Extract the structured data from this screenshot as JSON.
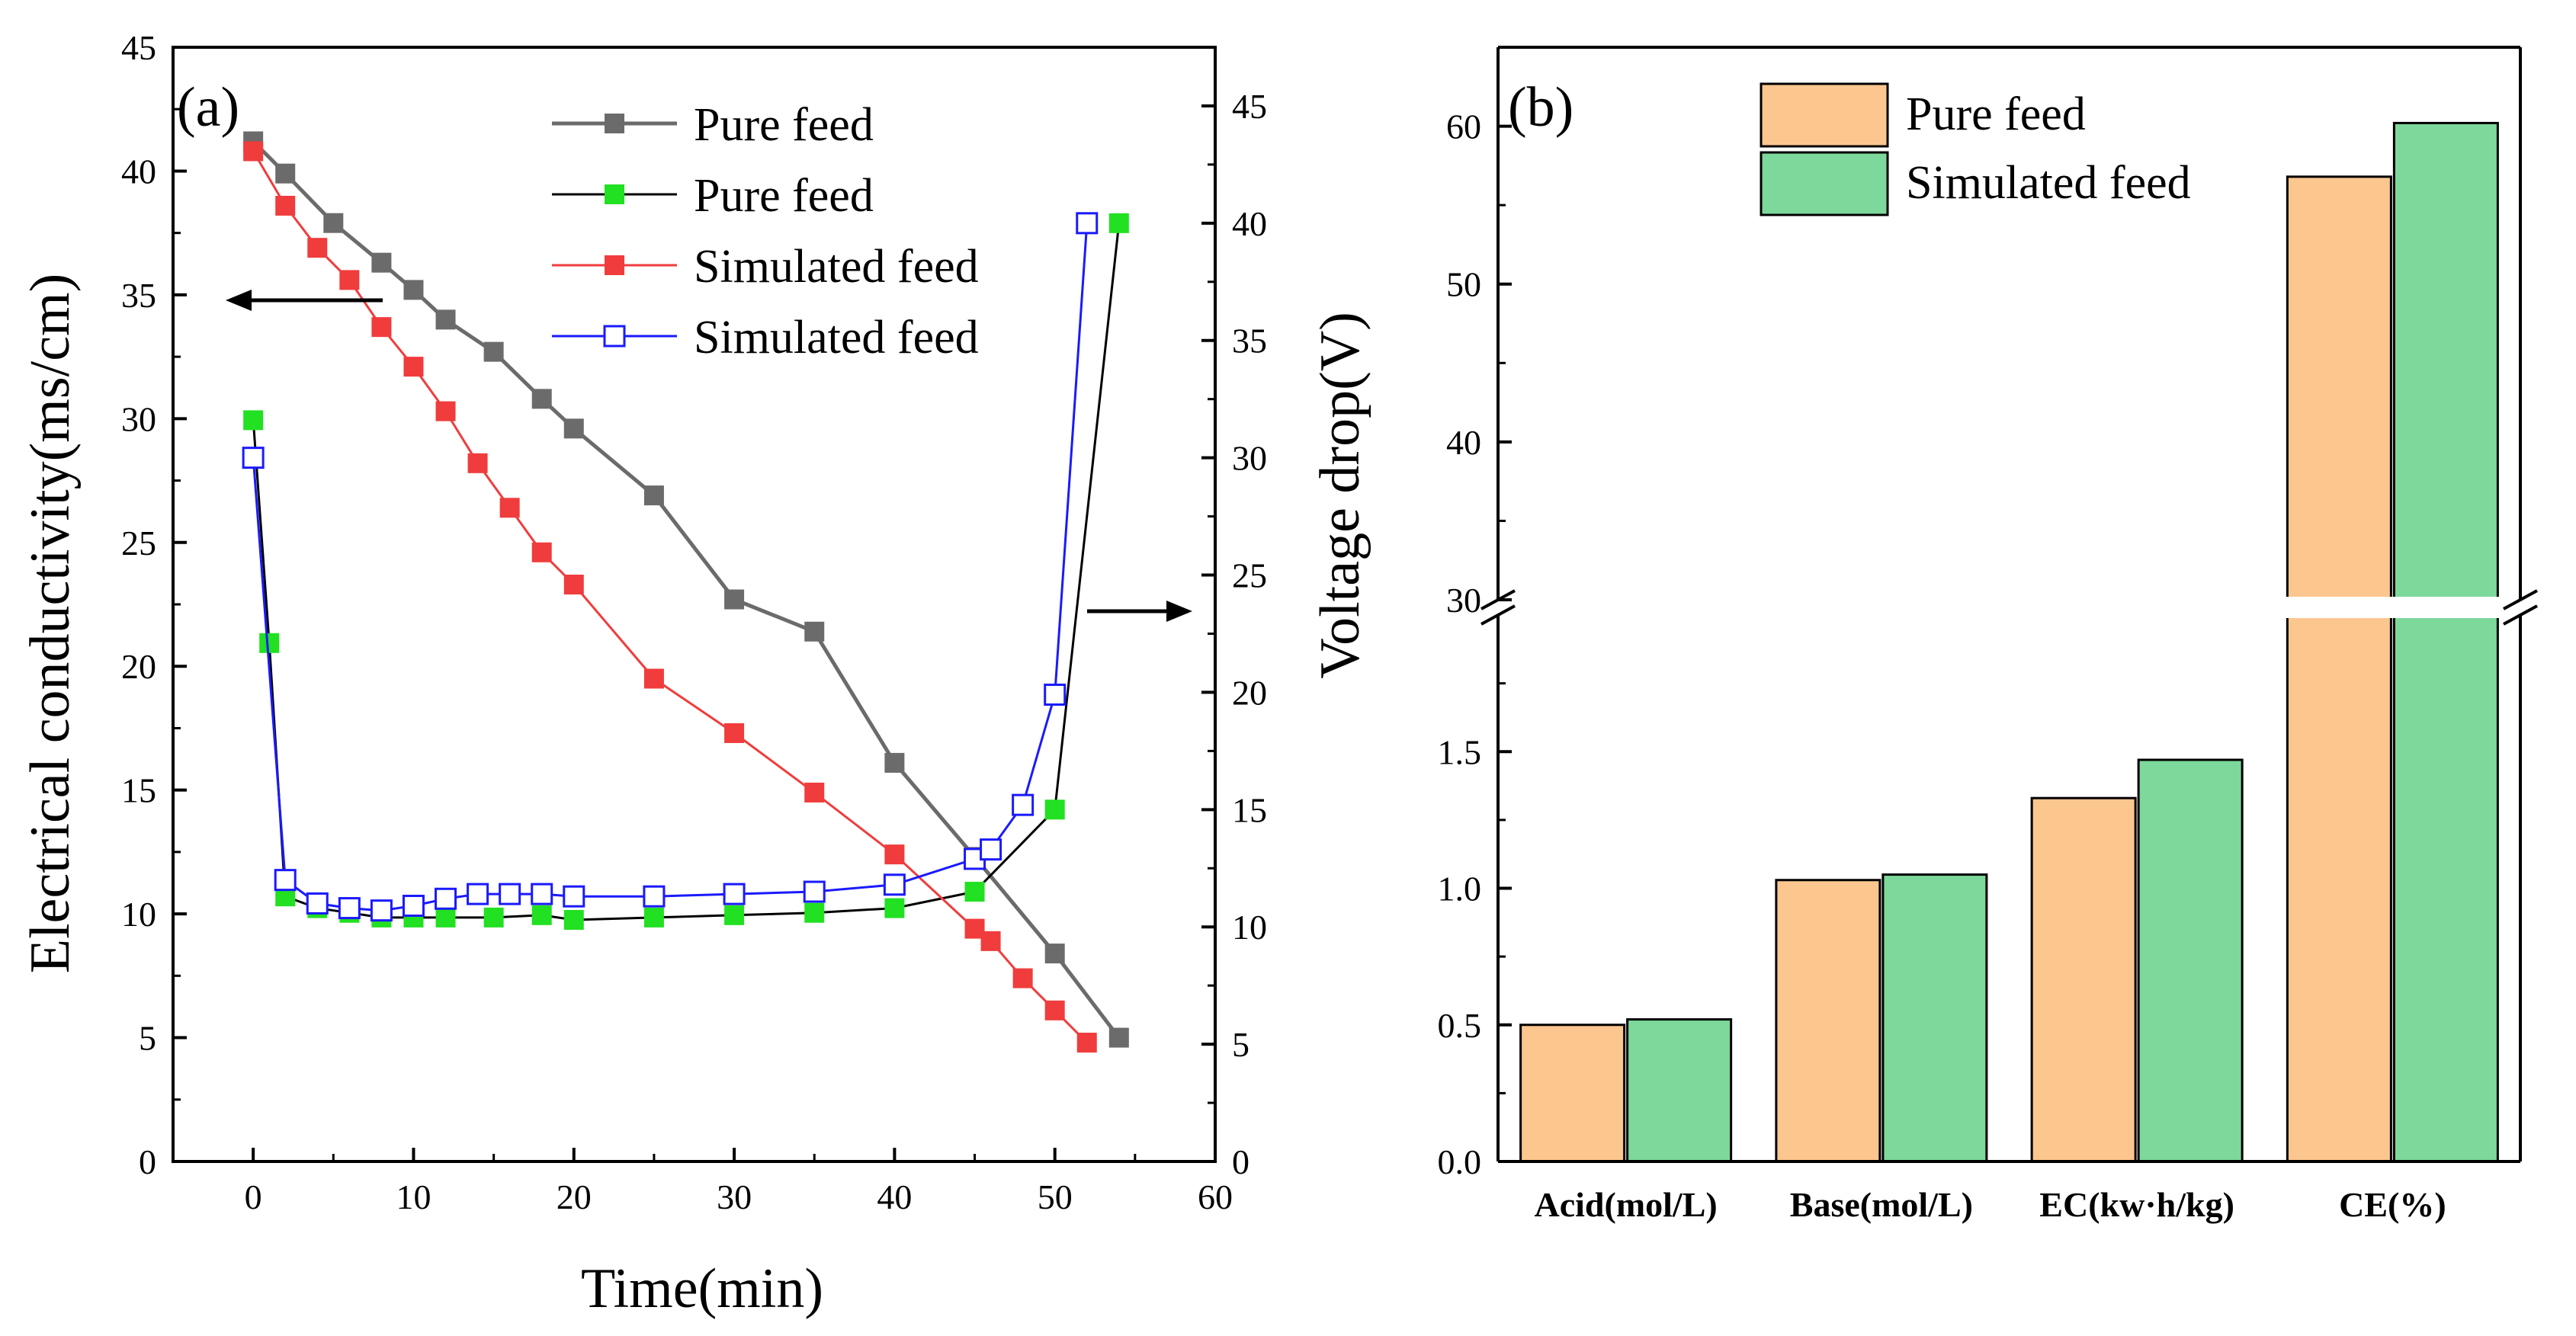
{
  "chart_data": [
    {
      "type": "line",
      "panel_label": "(a)",
      "xlabel": "Time(min)",
      "ylabel": "Electrical conductivity(ms/cm)",
      "y2label": "Voltage drop(V)",
      "xlim": [
        -5,
        60
      ],
      "ylim": [
        0,
        45
      ],
      "y2lim": [
        0,
        47.5
      ],
      "xticks": [
        "0",
        "10",
        "20",
        "30",
        "40",
        "50",
        "60"
      ],
      "yticks": [
        "0",
        "5",
        "10",
        "15",
        "20",
        "25",
        "30",
        "35",
        "40",
        "45"
      ],
      "y2ticks": [
        "0",
        "5",
        "10",
        "15",
        "20",
        "25",
        "30",
        "35",
        "40",
        "45"
      ],
      "legend_position": "top-right",
      "series": [
        {
          "name": "Pure feed",
          "axis": "left",
          "color": "#6b6b6b",
          "marker": "filled-square",
          "x": [
            0,
            2,
            5,
            8,
            10,
            12,
            15,
            18,
            20,
            25,
            30,
            35,
            40,
            45,
            50,
            54
          ],
          "y": [
            41.2,
            39.9,
            37.9,
            36.3,
            35.2,
            34.0,
            32.7,
            30.8,
            29.6,
            26.9,
            22.7,
            21.4,
            16.1,
            12.3,
            8.4,
            5.0
          ]
        },
        {
          "name": "Pure feed",
          "axis": "right",
          "color": "#22e022",
          "line_color": "#000000",
          "marker": "filled-square",
          "x": [
            0,
            1,
            2,
            4,
            6,
            8,
            10,
            12,
            15,
            18,
            20,
            25,
            30,
            35,
            40,
            45,
            50,
            54
          ],
          "y": [
            31.6,
            22.1,
            11.3,
            10.8,
            10.6,
            10.4,
            10.4,
            10.4,
            10.4,
            10.5,
            10.3,
            10.4,
            10.5,
            10.6,
            10.8,
            11.5,
            15.0,
            40.0
          ]
        },
        {
          "name": "Simulated feed",
          "axis": "left",
          "color": "#f03c3c",
          "marker": "filled-square",
          "x": [
            0,
            2,
            4,
            6,
            8,
            10,
            12,
            14,
            16,
            18,
            20,
            25,
            30,
            35,
            40,
            45,
            46,
            48,
            50,
            52
          ],
          "y": [
            40.8,
            38.6,
            36.9,
            35.6,
            33.7,
            32.1,
            30.3,
            28.2,
            26.4,
            24.6,
            23.3,
            19.5,
            17.3,
            14.9,
            12.4,
            9.4,
            8.9,
            7.4,
            6.1,
            4.8
          ]
        },
        {
          "name": "Simulated feed",
          "axis": "right",
          "color": "#1a1aff",
          "marker": "open-square",
          "x": [
            0,
            2,
            4,
            6,
            8,
            10,
            12,
            14,
            16,
            18,
            20,
            25,
            30,
            35,
            40,
            45,
            46,
            48,
            50,
            52
          ],
          "y": [
            30.0,
            12.0,
            11.0,
            10.8,
            10.7,
            10.9,
            11.2,
            11.4,
            11.4,
            11.4,
            11.3,
            11.3,
            11.4,
            11.5,
            11.8,
            12.9,
            13.3,
            15.2,
            19.9,
            40.0
          ]
        }
      ]
    },
    {
      "type": "bar",
      "panel_label": "(b)",
      "categories": [
        "Acid(mol/L)",
        "Base(mol/L)",
        "EC(kw·h/kg)",
        "CE(%)"
      ],
      "yticks_lower": [
        "0.0",
        "0.5",
        "1.0",
        "1.5"
      ],
      "yticks_upper": [
        "30",
        "40",
        "50",
        "60"
      ],
      "ylim_lower": [
        0,
        2
      ],
      "ylim_upper": [
        30,
        65
      ],
      "axis_break": true,
      "legend_position": "top-left",
      "series": [
        {
          "name": "Pure feed",
          "color": "#fcc68f",
          "values": [
            0.5,
            1.03,
            1.33,
            56.8
          ]
        },
        {
          "name": "Simulated feed",
          "color": "#7dd89b",
          "values": [
            0.52,
            1.05,
            1.47,
            60.2
          ]
        }
      ]
    }
  ]
}
